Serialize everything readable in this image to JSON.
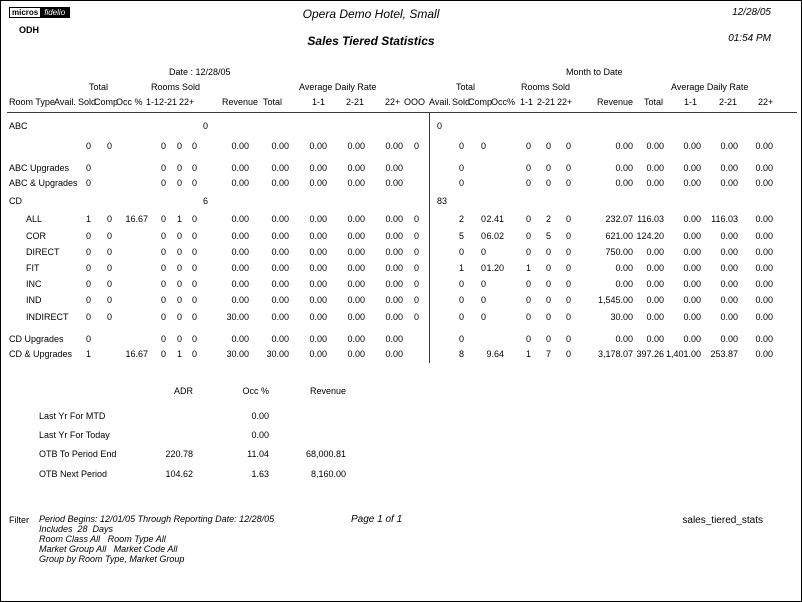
{
  "page": {
    "logo": {
      "part1": "micros",
      "part2": "fidelio"
    },
    "property_code": "ODH",
    "hotel_name": "Opera Demo Hotel, Small",
    "report_title": "Sales Tiered Statistics",
    "date": "12/28/05",
    "time": "01:54 PM"
  },
  "stats_table": {
    "left_group_title": "Date : 12/28/05",
    "right_group_title": "Month to Date",
    "subgroup_labels": [
      "Total",
      "Rooms Sold",
      "Average Daily Rate"
    ],
    "columns_left": [
      "Room Type",
      "Avail.",
      "Sold",
      "Comp",
      "Occ %",
      "1-1",
      "2-21",
      "22+",
      "Revenue",
      "Total",
      "1-1",
      "2-21",
      "22+",
      "OOO"
    ],
    "columns_right": [
      "Avail.",
      "Sold",
      "Comp",
      "Occ%",
      "1-1",
      "2-21",
      "22+",
      "Revenue",
      "Total",
      "1-1",
      "2-21",
      "22+"
    ],
    "rows": [
      {
        "type": "section",
        "label": "ABC",
        "left": [
          "0",
          "",
          "",
          "",
          "",
          "",
          "",
          "",
          "",
          "",
          "",
          "",
          ""
        ],
        "right": [
          "0",
          "",
          "",
          "",
          "",
          "",
          "",
          "",
          "",
          "",
          "",
          ""
        ]
      },
      {
        "type": "detail",
        "label": "",
        "left": [
          "",
          "0",
          "0",
          "",
          "0",
          "0",
          "0",
          "0.00",
          "0.00",
          "0.00",
          "0.00",
          "0.00",
          "0"
        ],
        "right": [
          "",
          "0",
          "0",
          "",
          "0",
          "0",
          "0",
          "0.00",
          "0.00",
          "0.00",
          "0.00",
          "0.00"
        ]
      },
      {
        "type": "group",
        "label": "ABC Upgrades",
        "left": [
          "",
          "0",
          "",
          "",
          "0",
          "0",
          "0",
          "0.00",
          "0.00",
          "0.00",
          "0.00",
          "0.00",
          ""
        ],
        "right": [
          "",
          "0",
          "",
          "",
          "0",
          "0",
          "0",
          "0.00",
          "0.00",
          "0.00",
          "0.00",
          "0.00"
        ]
      },
      {
        "type": "group",
        "label": "ABC & Upgrades",
        "left": [
          "",
          "0",
          "",
          "",
          "0",
          "0",
          "0",
          "0.00",
          "0.00",
          "0.00",
          "0.00",
          "0.00",
          ""
        ],
        "right": [
          "",
          "0",
          "",
          "",
          "0",
          "0",
          "0",
          "0.00",
          "0.00",
          "0.00",
          "0.00",
          "0.00"
        ]
      },
      {
        "type": "section",
        "label": "CD",
        "left": [
          "6",
          "",
          "",
          "",
          "",
          "",
          "",
          "",
          "",
          "",
          "",
          "",
          ""
        ],
        "right": [
          "83",
          "",
          "",
          "",
          "",
          "",
          "",
          "",
          "",
          "",
          "",
          ""
        ]
      },
      {
        "type": "detail",
        "label": "ALL",
        "left": [
          "",
          "1",
          "0",
          "16.67",
          "0",
          "1",
          "0",
          "0.00",
          "0.00",
          "0.00",
          "0.00",
          "0.00",
          "0"
        ],
        "right": [
          "",
          "2",
          "0",
          "2.41",
          "0",
          "2",
          "0",
          "232.07",
          "116.03",
          "0.00",
          "116.03",
          "0.00"
        ]
      },
      {
        "type": "detail",
        "label": "COR",
        "left": [
          "",
          "0",
          "0",
          "",
          "0",
          "0",
          "0",
          "0.00",
          "0.00",
          "0.00",
          "0.00",
          "0.00",
          "0"
        ],
        "right": [
          "",
          "5",
          "0",
          "6.02",
          "0",
          "5",
          "0",
          "621.00",
          "124.20",
          "0.00",
          "0.00",
          "0.00"
        ]
      },
      {
        "type": "detail",
        "label": "DIRECT",
        "left": [
          "",
          "0",
          "0",
          "",
          "0",
          "0",
          "0",
          "0.00",
          "0.00",
          "0.00",
          "0.00",
          "0.00",
          "0"
        ],
        "right": [
          "",
          "0",
          "0",
          "",
          "0",
          "0",
          "0",
          "750.00",
          "0.00",
          "0.00",
          "0.00",
          "0.00"
        ]
      },
      {
        "type": "detail",
        "label": "FIT",
        "left": [
          "",
          "0",
          "0",
          "",
          "0",
          "0",
          "0",
          "0.00",
          "0.00",
          "0.00",
          "0.00",
          "0.00",
          "0"
        ],
        "right": [
          "",
          "1",
          "0",
          "1.20",
          "1",
          "0",
          "0",
          "0.00",
          "0.00",
          "0.00",
          "0.00",
          "0.00"
        ]
      },
      {
        "type": "detail",
        "label": "INC",
        "left": [
          "",
          "0",
          "0",
          "",
          "0",
          "0",
          "0",
          "0.00",
          "0.00",
          "0.00",
          "0.00",
          "0.00",
          "0"
        ],
        "right": [
          "",
          "0",
          "0",
          "",
          "0",
          "0",
          "0",
          "0.00",
          "0.00",
          "0.00",
          "0.00",
          "0.00"
        ]
      },
      {
        "type": "detail",
        "label": "IND",
        "left": [
          "",
          "0",
          "0",
          "",
          "0",
          "0",
          "0",
          "0.00",
          "0.00",
          "0.00",
          "0.00",
          "0.00",
          "0"
        ],
        "right": [
          "",
          "0",
          "0",
          "",
          "0",
          "0",
          "0",
          "1,545.00",
          "0.00",
          "0.00",
          "0.00",
          "0.00"
        ]
      },
      {
        "type": "detail",
        "label": "INDIRECT",
        "left": [
          "",
          "0",
          "0",
          "",
          "0",
          "0",
          "0",
          "30.00",
          "0.00",
          "0.00",
          "0.00",
          "0.00",
          "0"
        ],
        "right": [
          "",
          "0",
          "0",
          "",
          "0",
          "0",
          "0",
          "30.00",
          "0.00",
          "0.00",
          "0.00",
          "0.00"
        ]
      },
      {
        "type": "group",
        "label": "CD Upgrades",
        "left": [
          "",
          "0",
          "",
          "",
          "0",
          "0",
          "0",
          "0.00",
          "0.00",
          "0.00",
          "0.00",
          "0.00",
          ""
        ],
        "right": [
          "",
          "0",
          "",
          "",
          "0",
          "0",
          "0",
          "0.00",
          "0.00",
          "0.00",
          "0.00",
          "0.00"
        ]
      },
      {
        "type": "group",
        "label": "CD & Upgrades",
        "left": [
          "",
          "1",
          "",
          "16.67",
          "0",
          "1",
          "0",
          "30.00",
          "30.00",
          "0.00",
          "0.00",
          "0.00",
          ""
        ],
        "right": [
          "",
          "8",
          "",
          "9.64",
          "1",
          "7",
          "0",
          "3,178.07",
          "397.26",
          "1,401.00",
          "253.87",
          "0.00"
        ]
      }
    ]
  },
  "summary_table": {
    "columns": [
      "ADR",
      "Occ %",
      "Revenue"
    ],
    "rows": [
      {
        "label": "Last Yr For MTD",
        "adr": "",
        "occ": "0.00",
        "revenue": ""
      },
      {
        "label": "Last Yr For Today",
        "adr": "",
        "occ": "0.00",
        "revenue": ""
      },
      {
        "label": "OTB To Period End",
        "adr": "220.78",
        "occ": "11.04",
        "revenue": "68,000.81"
      },
      {
        "label": "OTB Next Period",
        "adr": "104.62",
        "occ": "1.63",
        "revenue": "8,160.00"
      }
    ]
  },
  "footer": {
    "filter_label": "Filter",
    "filter_lines": [
      "Period Begins: 12/01/05 Through Reporting Date: 12/28/05",
      "Includes  28  Days",
      "Room Class All   Room Type All",
      "Market Group All   Market Code All",
      "Group by Room Type, Market Group"
    ],
    "page_info": "Page 1 of 1",
    "report_id": "sales_tiered_stats"
  }
}
